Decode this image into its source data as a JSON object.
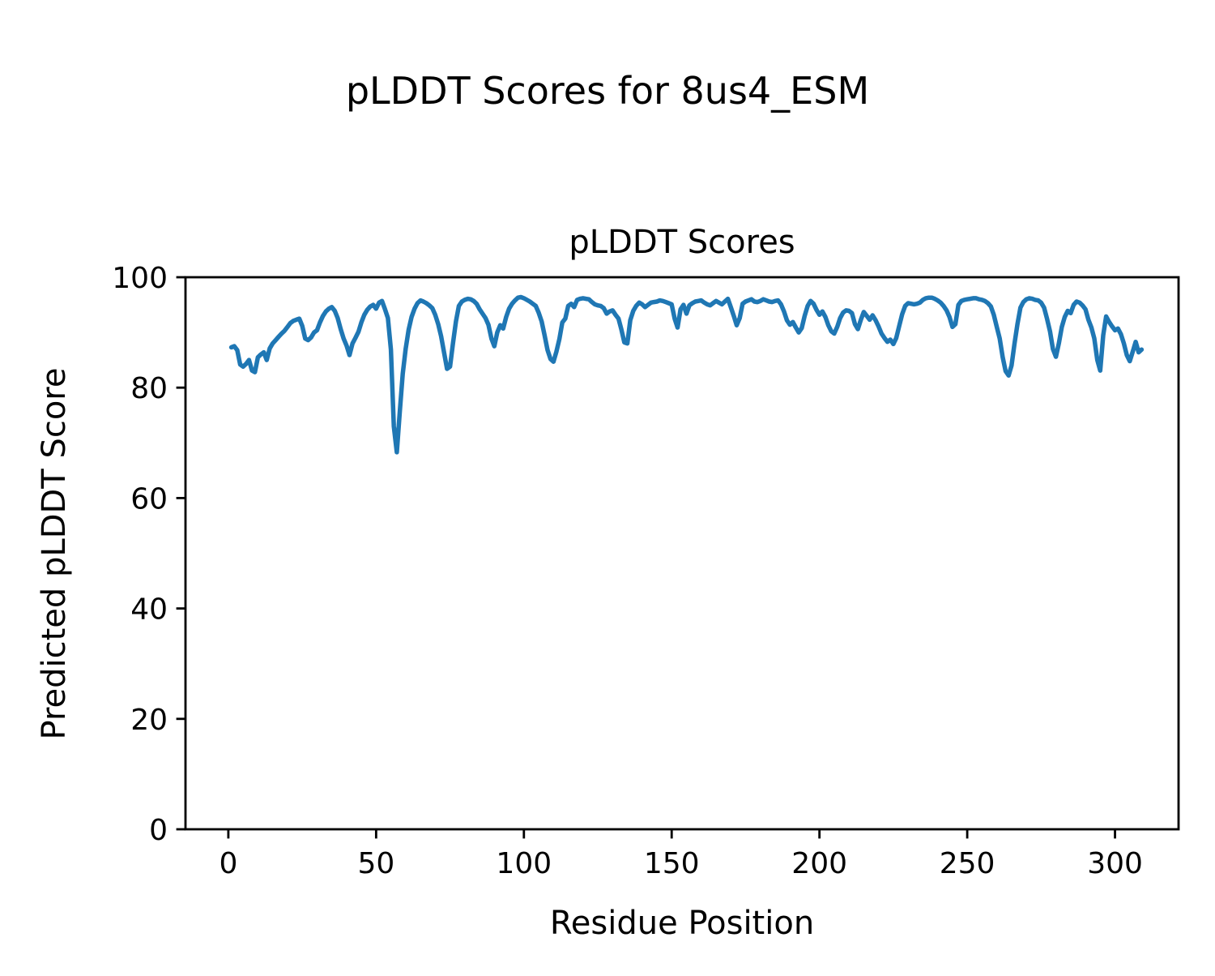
{
  "figure": {
    "suptitle": "pLDDT Scores for 8us4_ESM"
  },
  "chart_data": {
    "type": "line",
    "title": "pLDDT Scores",
    "xlabel": "Residue Position",
    "ylabel": "Predicted pLDDT Score",
    "xlim": [
      -14.5,
      321.5
    ],
    "ylim": [
      0,
      100
    ],
    "x_ticks": [
      0,
      50,
      100,
      150,
      200,
      250,
      300
    ],
    "y_ticks": [
      0,
      20,
      40,
      60,
      80,
      100
    ],
    "grid": false,
    "legend": "none",
    "line_color": "#1f77b4",
    "axis_color": "#000000",
    "series": [
      {
        "name": "pLDDT",
        "points": [
          [
            1,
            87.3
          ],
          [
            2,
            87.5
          ],
          [
            3,
            86.8
          ],
          [
            4,
            84.2
          ],
          [
            5,
            83.8
          ],
          [
            6,
            84.3
          ],
          [
            7,
            85.0
          ],
          [
            8,
            83.1
          ],
          [
            9,
            82.8
          ],
          [
            10,
            85.5
          ],
          [
            11,
            86.0
          ],
          [
            12,
            86.4
          ],
          [
            13,
            85.0
          ],
          [
            14,
            87.1
          ],
          [
            15,
            88.0
          ],
          [
            16,
            88.6
          ],
          [
            17,
            89.2
          ],
          [
            18,
            89.8
          ],
          [
            19,
            90.3
          ],
          [
            20,
            91.0
          ],
          [
            21,
            91.7
          ],
          [
            22,
            92.1
          ],
          [
            23,
            92.3
          ],
          [
            24,
            92.5
          ],
          [
            25,
            91.2
          ],
          [
            26,
            88.9
          ],
          [
            27,
            88.6
          ],
          [
            28,
            89.1
          ],
          [
            29,
            90.0
          ],
          [
            30,
            90.4
          ],
          [
            31,
            91.8
          ],
          [
            32,
            93.0
          ],
          [
            33,
            93.8
          ],
          [
            34,
            94.3
          ],
          [
            35,
            94.6
          ],
          [
            36,
            93.9
          ],
          [
            37,
            92.6
          ],
          [
            38,
            90.6
          ],
          [
            39,
            88.9
          ],
          [
            40,
            87.6
          ],
          [
            41,
            85.9
          ],
          [
            42,
            88.0
          ],
          [
            43,
            89.0
          ],
          [
            44,
            90.1
          ],
          [
            45,
            91.8
          ],
          [
            46,
            93.2
          ],
          [
            47,
            94.1
          ],
          [
            48,
            94.7
          ],
          [
            49,
            95.0
          ],
          [
            50,
            94.3
          ],
          [
            51,
            95.4
          ],
          [
            52,
            95.7
          ],
          [
            53,
            94.2
          ],
          [
            54,
            92.6
          ],
          [
            55,
            86.9
          ],
          [
            56,
            73.0
          ],
          [
            57,
            68.3
          ],
          [
            58,
            75.5
          ],
          [
            59,
            82.5
          ],
          [
            60,
            87.0
          ],
          [
            61,
            90.5
          ],
          [
            62,
            92.8
          ],
          [
            63,
            94.3
          ],
          [
            64,
            95.3
          ],
          [
            65,
            95.8
          ],
          [
            66,
            95.6
          ],
          [
            67,
            95.3
          ],
          [
            68,
            94.9
          ],
          [
            69,
            94.4
          ],
          [
            70,
            93.2
          ],
          [
            71,
            91.5
          ],
          [
            72,
            89.3
          ],
          [
            73,
            86.3
          ],
          [
            74,
            83.4
          ],
          [
            75,
            83.8
          ],
          [
            76,
            88.0
          ],
          [
            77,
            92.0
          ],
          [
            78,
            94.8
          ],
          [
            79,
            95.6
          ],
          [
            80,
            95.9
          ],
          [
            81,
            96.1
          ],
          [
            82,
            96.0
          ],
          [
            83,
            95.7
          ],
          [
            84,
            95.2
          ],
          [
            85,
            94.2
          ],
          [
            86,
            93.4
          ],
          [
            87,
            92.6
          ],
          [
            88,
            91.4
          ],
          [
            89,
            88.9
          ],
          [
            90,
            87.5
          ],
          [
            91,
            90.0
          ],
          [
            92,
            91.3
          ],
          [
            93,
            90.7
          ],
          [
            94,
            92.8
          ],
          [
            95,
            94.3
          ],
          [
            96,
            95.2
          ],
          [
            97,
            95.8
          ],
          [
            98,
            96.3
          ],
          [
            99,
            96.4
          ],
          [
            100,
            96.2
          ],
          [
            101,
            95.9
          ],
          [
            102,
            95.6
          ],
          [
            103,
            95.2
          ],
          [
            104,
            94.8
          ],
          [
            105,
            93.6
          ],
          [
            106,
            92.0
          ],
          [
            107,
            89.5
          ],
          [
            108,
            86.8
          ],
          [
            109,
            85.2
          ],
          [
            110,
            84.7
          ],
          [
            111,
            86.5
          ],
          [
            112,
            88.8
          ],
          [
            113,
            91.8
          ],
          [
            114,
            92.5
          ],
          [
            115,
            94.8
          ],
          [
            116,
            95.2
          ],
          [
            117,
            94.6
          ],
          [
            118,
            95.9
          ],
          [
            119,
            96.1
          ],
          [
            120,
            96.2
          ],
          [
            121,
            96.1
          ],
          [
            122,
            96.0
          ],
          [
            123,
            95.5
          ],
          [
            124,
            95.1
          ],
          [
            125,
            94.9
          ],
          [
            126,
            94.8
          ],
          [
            127,
            94.4
          ],
          [
            128,
            93.4
          ],
          [
            129,
            93.8
          ],
          [
            130,
            94.0
          ],
          [
            131,
            93.2
          ],
          [
            132,
            92.5
          ],
          [
            133,
            90.5
          ],
          [
            134,
            88.2
          ],
          [
            135,
            88.0
          ],
          [
            136,
            92.2
          ],
          [
            137,
            93.9
          ],
          [
            138,
            94.8
          ],
          [
            139,
            95.4
          ],
          [
            140,
            95.1
          ],
          [
            141,
            94.6
          ],
          [
            142,
            95.0
          ],
          [
            143,
            95.4
          ],
          [
            144,
            95.5
          ],
          [
            145,
            95.6
          ],
          [
            146,
            95.8
          ],
          [
            147,
            95.7
          ],
          [
            148,
            95.5
          ],
          [
            149,
            95.3
          ],
          [
            150,
            95.1
          ],
          [
            151,
            92.5
          ],
          [
            152,
            90.9
          ],
          [
            153,
            94.2
          ],
          [
            154,
            95.0
          ],
          [
            155,
            93.4
          ],
          [
            156,
            94.9
          ],
          [
            157,
            95.3
          ],
          [
            158,
            95.6
          ],
          [
            159,
            95.7
          ],
          [
            160,
            95.8
          ],
          [
            161,
            95.4
          ],
          [
            162,
            95.1
          ],
          [
            163,
            94.9
          ],
          [
            164,
            95.3
          ],
          [
            165,
            95.7
          ],
          [
            166,
            95.4
          ],
          [
            167,
            95.1
          ],
          [
            168,
            95.6
          ],
          [
            169,
            96.1
          ],
          [
            170,
            94.6
          ],
          [
            171,
            93.0
          ],
          [
            172,
            91.3
          ],
          [
            173,
            92.6
          ],
          [
            174,
            95.2
          ],
          [
            175,
            95.6
          ],
          [
            176,
            95.8
          ],
          [
            177,
            96.0
          ],
          [
            178,
            95.6
          ],
          [
            179,
            95.5
          ],
          [
            180,
            95.7
          ],
          [
            181,
            96.0
          ],
          [
            182,
            95.8
          ],
          [
            183,
            95.6
          ],
          [
            184,
            95.5
          ],
          [
            185,
            95.7
          ],
          [
            186,
            95.8
          ],
          [
            187,
            95.1
          ],
          [
            188,
            93.8
          ],
          [
            189,
            92.2
          ],
          [
            190,
            91.4
          ],
          [
            191,
            91.9
          ],
          [
            192,
            90.9
          ],
          [
            193,
            90.0
          ],
          [
            194,
            90.8
          ],
          [
            195,
            93.0
          ],
          [
            196,
            94.8
          ],
          [
            197,
            95.7
          ],
          [
            198,
            95.2
          ],
          [
            199,
            94.1
          ],
          [
            200,
            93.2
          ],
          [
            201,
            93.8
          ],
          [
            202,
            92.8
          ],
          [
            203,
            91.3
          ],
          [
            204,
            90.2
          ],
          [
            205,
            89.8
          ],
          [
            206,
            91.0
          ],
          [
            207,
            92.6
          ],
          [
            208,
            93.6
          ],
          [
            209,
            94.0
          ],
          [
            210,
            93.9
          ],
          [
            211,
            93.5
          ],
          [
            212,
            91.5
          ],
          [
            213,
            90.6
          ],
          [
            214,
            92.3
          ],
          [
            215,
            93.7
          ],
          [
            216,
            93.0
          ],
          [
            217,
            92.3
          ],
          [
            218,
            93.1
          ],
          [
            219,
            92.2
          ],
          [
            220,
            91.1
          ],
          [
            221,
            89.8
          ],
          [
            222,
            89.0
          ],
          [
            223,
            88.3
          ],
          [
            224,
            88.7
          ],
          [
            225,
            87.9
          ],
          [
            226,
            89.0
          ],
          [
            227,
            91.2
          ],
          [
            228,
            93.3
          ],
          [
            229,
            94.8
          ],
          [
            230,
            95.3
          ],
          [
            231,
            95.2
          ],
          [
            232,
            95.1
          ],
          [
            233,
            95.2
          ],
          [
            234,
            95.4
          ],
          [
            235,
            95.9
          ],
          [
            236,
            96.2
          ],
          [
            237,
            96.3
          ],
          [
            238,
            96.3
          ],
          [
            239,
            96.1
          ],
          [
            240,
            95.8
          ],
          [
            241,
            95.4
          ],
          [
            242,
            94.8
          ],
          [
            243,
            94.0
          ],
          [
            244,
            92.8
          ],
          [
            245,
            91.0
          ],
          [
            246,
            91.5
          ],
          [
            247,
            95.0
          ],
          [
            248,
            95.7
          ],
          [
            249,
            95.9
          ],
          [
            250,
            96.0
          ],
          [
            251,
            96.1
          ],
          [
            252,
            96.2
          ],
          [
            253,
            96.2
          ],
          [
            254,
            96.0
          ],
          [
            255,
            95.9
          ],
          [
            256,
            95.7
          ],
          [
            257,
            95.3
          ],
          [
            258,
            94.7
          ],
          [
            259,
            93.2
          ],
          [
            260,
            91.0
          ],
          [
            261,
            88.9
          ],
          [
            262,
            85.5
          ],
          [
            263,
            83.0
          ],
          [
            264,
            82.2
          ],
          [
            265,
            84.0
          ],
          [
            266,
            88.0
          ],
          [
            267,
            91.5
          ],
          [
            268,
            94.5
          ],
          [
            269,
            95.5
          ],
          [
            270,
            96.0
          ],
          [
            271,
            96.2
          ],
          [
            272,
            96.1
          ],
          [
            273,
            95.9
          ],
          [
            274,
            95.8
          ],
          [
            275,
            95.4
          ],
          [
            276,
            94.5
          ],
          [
            277,
            92.5
          ],
          [
            278,
            90.2
          ],
          [
            279,
            87.0
          ],
          [
            280,
            85.6
          ],
          [
            281,
            88.0
          ],
          [
            282,
            91.0
          ],
          [
            283,
            92.8
          ],
          [
            284,
            93.9
          ],
          [
            285,
            93.5
          ],
          [
            286,
            95.0
          ],
          [
            287,
            95.6
          ],
          [
            288,
            95.4
          ],
          [
            289,
            94.9
          ],
          [
            290,
            94.2
          ],
          [
            291,
            92.3
          ],
          [
            292,
            90.9
          ],
          [
            293,
            88.9
          ],
          [
            294,
            85.0
          ],
          [
            295,
            83.1
          ],
          [
            296,
            89.5
          ],
          [
            297,
            92.9
          ],
          [
            298,
            91.9
          ],
          [
            299,
            91.1
          ],
          [
            300,
            90.4
          ],
          [
            301,
            90.7
          ],
          [
            302,
            89.7
          ],
          [
            303,
            88.0
          ],
          [
            304,
            85.9
          ],
          [
            305,
            84.8
          ],
          [
            306,
            86.5
          ],
          [
            307,
            88.3
          ],
          [
            308,
            86.4
          ],
          [
            309,
            86.9
          ]
        ]
      }
    ]
  }
}
